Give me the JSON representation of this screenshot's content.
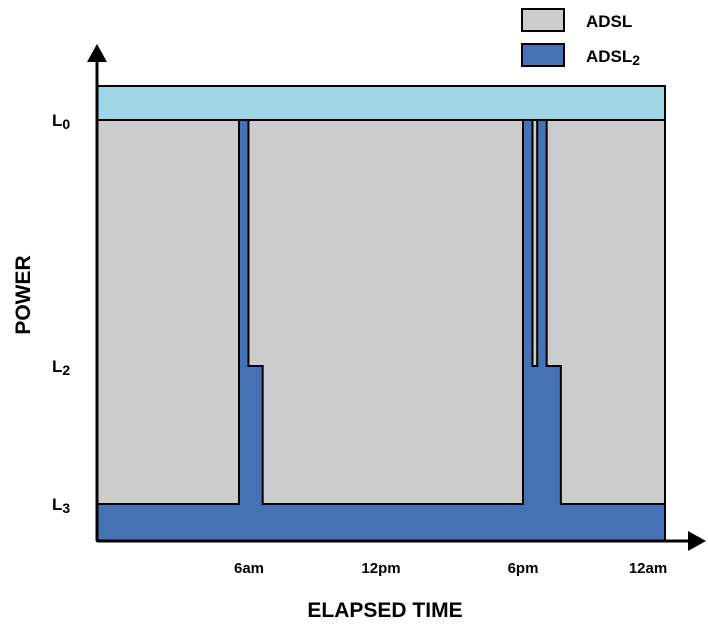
{
  "chart_data": {
    "type": "area",
    "ylabel": "POWER",
    "xlabel": "ELAPSED TIME",
    "x_ticks": [
      "6am",
      "12pm",
      "6pm",
      "12am"
    ],
    "y_levels": [
      "L0",
      "L2",
      "L3"
    ],
    "y_level_labels": [
      {
        "main": "L",
        "sub": "0"
      },
      {
        "main": "L",
        "sub": "2"
      },
      {
        "main": "L",
        "sub": "3"
      }
    ],
    "legend": [
      {
        "name": "ADSL",
        "color": "#cccccc"
      },
      {
        "name": "ADSL2",
        "color": "#4472b4"
      }
    ],
    "legend_position": "top-right",
    "colors": {
      "adsl": "#cccccc",
      "adsl2": "#4472b4",
      "l0_band": "#9fd7e6",
      "axis": "#000000"
    },
    "series": [
      {
        "name": "ADSL",
        "level": "L0"
      },
      {
        "name": "ADSL2",
        "hours": [
          0,
          6,
          6,
          6.4,
          6.4,
          7,
          7,
          18,
          18,
          18.4,
          18.4,
          18.6,
          18.6,
          19,
          19,
          19.6,
          19.6,
          24
        ],
        "levels": [
          "L3",
          "L3",
          "L0",
          "L0",
          "L2",
          "L2",
          "L3",
          "L3",
          "L0",
          "L0",
          "L2",
          "L2",
          "L0",
          "L0",
          "L2",
          "L2",
          "L3",
          "L3"
        ]
      }
    ]
  }
}
